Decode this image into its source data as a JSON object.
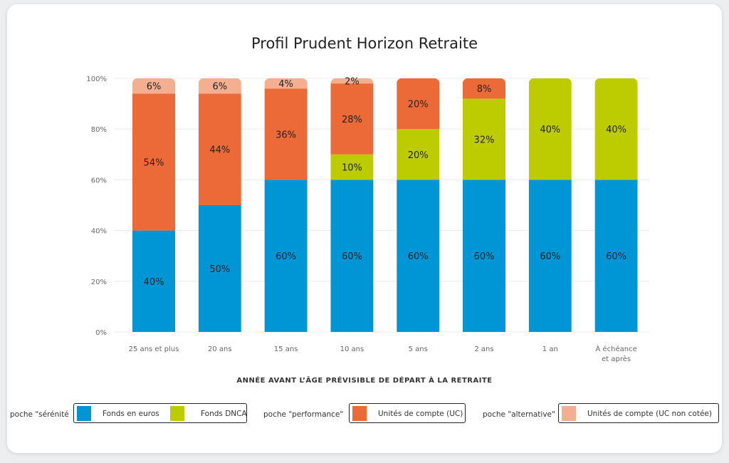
{
  "chart_data": {
    "type": "bar",
    "stacked": true,
    "title": "Profil Prudent Horizon Retraite",
    "xlabel": "ANNÉE AVANT L’ÂGE PRÉVISIBLE DE DÉPART À LA RETRAITE",
    "ylabel": "",
    "ylim": [
      0,
      100
    ],
    "yticks": [
      "0%",
      "20%",
      "40%",
      "60%",
      "80%",
      "100%"
    ],
    "grid": true,
    "categories": [
      "25 ans et plus",
      "20 ans",
      "15 ans",
      "10 ans",
      "5 ans",
      "2 ans",
      "1 an",
      "À échéance et après"
    ],
    "series": [
      {
        "name": "Fonds en euros",
        "color": "#0096d6",
        "values": [
          40,
          50,
          60,
          60,
          60,
          60,
          60,
          60
        ]
      },
      {
        "name": "Fonds DNCA",
        "color": "#bccc00",
        "values": [
          0,
          0,
          0,
          10,
          20,
          32,
          40,
          40
        ]
      },
      {
        "name": "Unités de compte (UC)",
        "color": "#ec6a37",
        "values": [
          54,
          44,
          36,
          28,
          20,
          8,
          0,
          0
        ]
      },
      {
        "name": "Unités de compte  (UC non  cotée)",
        "color": "#f4ae90",
        "values": [
          6,
          6,
          4,
          2,
          0,
          0,
          0,
          0
        ]
      }
    ]
  },
  "legend": {
    "groups": [
      {
        "label": "poche \"sérénité",
        "items": [
          "Fonds en euros",
          "Fonds DNCA"
        ]
      },
      {
        "label": "poche \"performance\"",
        "items": [
          "Unités de compte (UC)"
        ]
      },
      {
        "label": "poche \"alternative\"",
        "items": [
          "Unités de compte  (UC non  cotée)"
        ]
      }
    ]
  }
}
